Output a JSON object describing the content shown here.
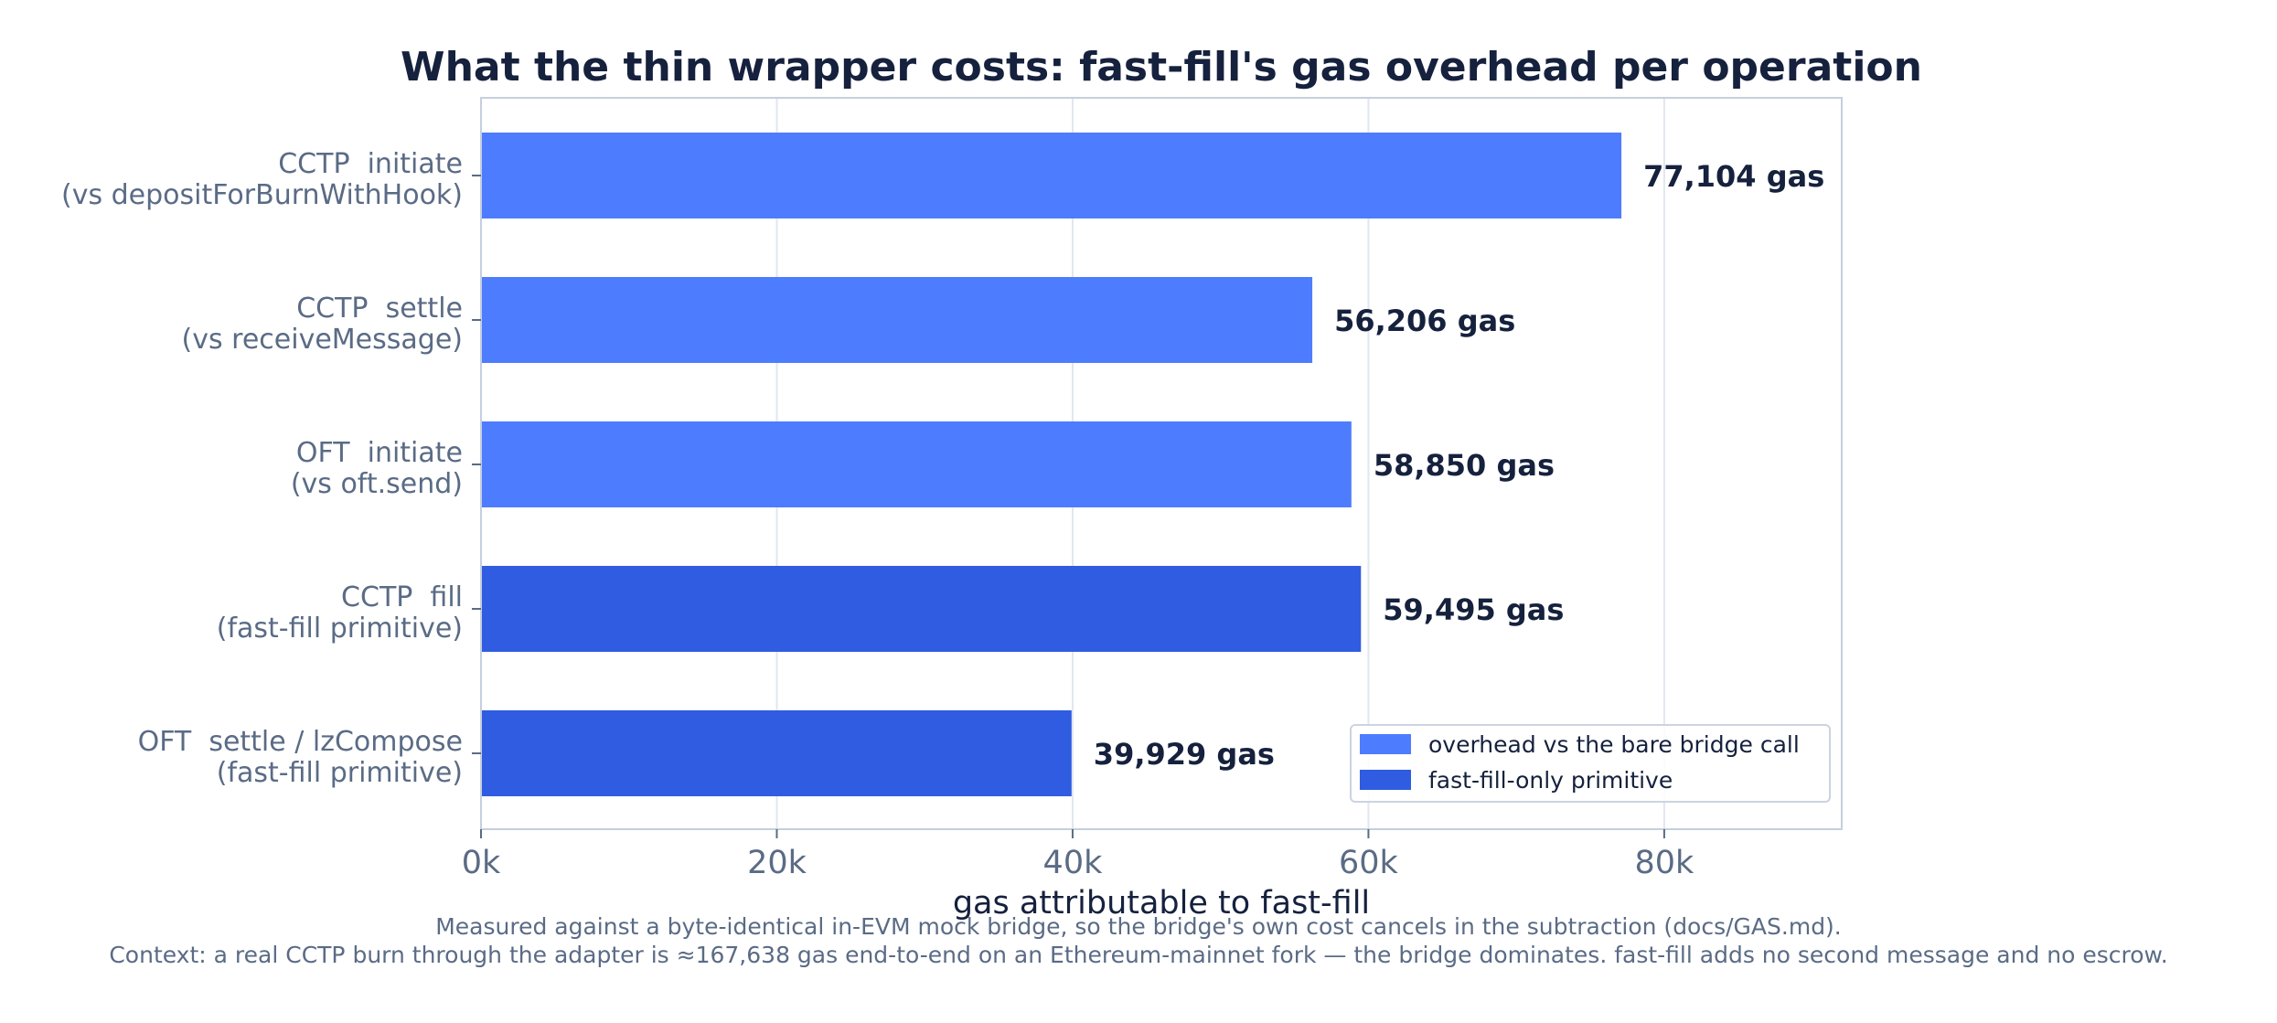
{
  "chart_data": {
    "type": "bar",
    "orientation": "horizontal",
    "title": "What the thin wrapper costs: fast-fill's gas overhead per operation",
    "xlabel": "gas attributable to fast-fill",
    "ylabel": "",
    "xlim": [
      0,
      92000
    ],
    "x_ticks": [
      0,
      20000,
      40000,
      60000,
      80000
    ],
    "x_tick_labels": [
      "0k",
      "20k",
      "40k",
      "60k",
      "80k"
    ],
    "grid": true,
    "legend_position": "lower-right",
    "categories": [
      {
        "line1": "CCTP  initiate",
        "line2": "(vs depositForBurnWithHook)"
      },
      {
        "line1": "CCTP  settle",
        "line2": "(vs receiveMessage)"
      },
      {
        "line1": "OFT  initiate",
        "line2": "(vs oft.send)"
      },
      {
        "line1": "CCTP  fill",
        "line2": "(fast-fill primitive)"
      },
      {
        "line1": "OFT  settle / lzCompose",
        "line2": "(fast-fill primitive)"
      }
    ],
    "values": [
      77104,
      56206,
      58850,
      59495,
      39929
    ],
    "value_labels": [
      "77,104 gas",
      "56,206 gas",
      "58,850 gas",
      "59,495 gas",
      "39,929 gas"
    ],
    "bar_series": [
      0,
      0,
      0,
      1,
      1
    ],
    "series": [
      {
        "name": "overhead vs the bare bridge call",
        "color": "#4d7cfe"
      },
      {
        "name": "fast-fill-only primitive",
        "color": "#2f5ce0"
      }
    ],
    "footnotes": [
      "Measured against a byte-identical in-EVM mock bridge, so the bridge's own cost cancels in the subtraction (docs/GAS.md).",
      "Context: a real CCTP burn through the adapter is ≈167,638 gas end-to-end on an Ethereum-mainnet fork — the bridge dominates. fast-fill adds no second message and no escrow."
    ]
  },
  "colors": {
    "title": "#15213d",
    "tick_text": "#5a6b85",
    "footnote": "#5a6b85",
    "value_label": "#15213d",
    "axes_frame": "#c5cfdf",
    "grid": "#e1e6f0"
  }
}
